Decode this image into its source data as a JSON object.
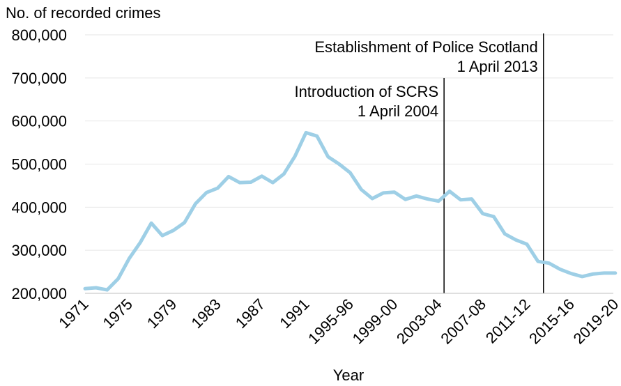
{
  "chart_data": {
    "type": "line",
    "title": "",
    "ylabel": "No. of recorded crimes",
    "xlabel": "Year",
    "ylim": [
      200000,
      800000
    ],
    "yticks": [
      200000,
      300000,
      400000,
      500000,
      600000,
      700000,
      800000
    ],
    "ytick_labels": [
      "200,000",
      "300,000",
      "400,000",
      "500,000",
      "600,000",
      "700,000",
      "800,000"
    ],
    "grid": "horizontal",
    "line_color": "#9ecfe6",
    "categories": [
      "1971",
      "1972",
      "1973",
      "1974",
      "1975",
      "1976",
      "1977",
      "1978",
      "1979",
      "1980",
      "1981",
      "1982",
      "1983",
      "1984",
      "1985",
      "1986",
      "1987",
      "1988",
      "1989",
      "1990",
      "1991",
      "1992",
      "1993",
      "1994-95",
      "1995-96",
      "1996-97",
      "1997-98",
      "1998-99",
      "1999-00",
      "2000-01",
      "2001-02",
      "2002-03",
      "2003-04",
      "2004-05",
      "2005-06",
      "2006-07",
      "2007-08",
      "2008-09",
      "2009-10",
      "2010-11",
      "2011-12",
      "2012-13",
      "2013-14",
      "2014-15",
      "2015-16",
      "2016-17",
      "2017-18",
      "2018-19",
      "2019-20"
    ],
    "x_tick_labels": [
      "1971",
      "1975",
      "1979",
      "1983",
      "1987",
      "1991",
      "1995-96",
      "1999-00",
      "2003-04",
      "2007-08",
      "2011-12",
      "2015-16",
      "2019-20"
    ],
    "values": [
      211000,
      213000,
      208000,
      234000,
      281000,
      318000,
      363000,
      334000,
      346000,
      364000,
      408000,
      434000,
      444000,
      471000,
      457000,
      458000,
      472000,
      457000,
      477000,
      518000,
      573000,
      565000,
      517000,
      500000,
      480000,
      441000,
      420000,
      433000,
      435000,
      418000,
      426000,
      419000,
      414000,
      437000,
      417000,
      419000,
      385000,
      378000,
      338000,
      324000,
      314000,
      274000,
      270000,
      256000,
      246000,
      239000,
      245000,
      247000,
      247000
    ],
    "annotations": [
      {
        "label_line1": "Introduction of SCRS",
        "label_line2": "1 April 2004",
        "at_category": "2004-05",
        "fraction_into_period": 0.0
      },
      {
        "label_line1": "Establishment of Police Scotland",
        "label_line2": "1 April 2013",
        "at_category": "2013-14",
        "fraction_into_period": 0.0
      }
    ]
  }
}
